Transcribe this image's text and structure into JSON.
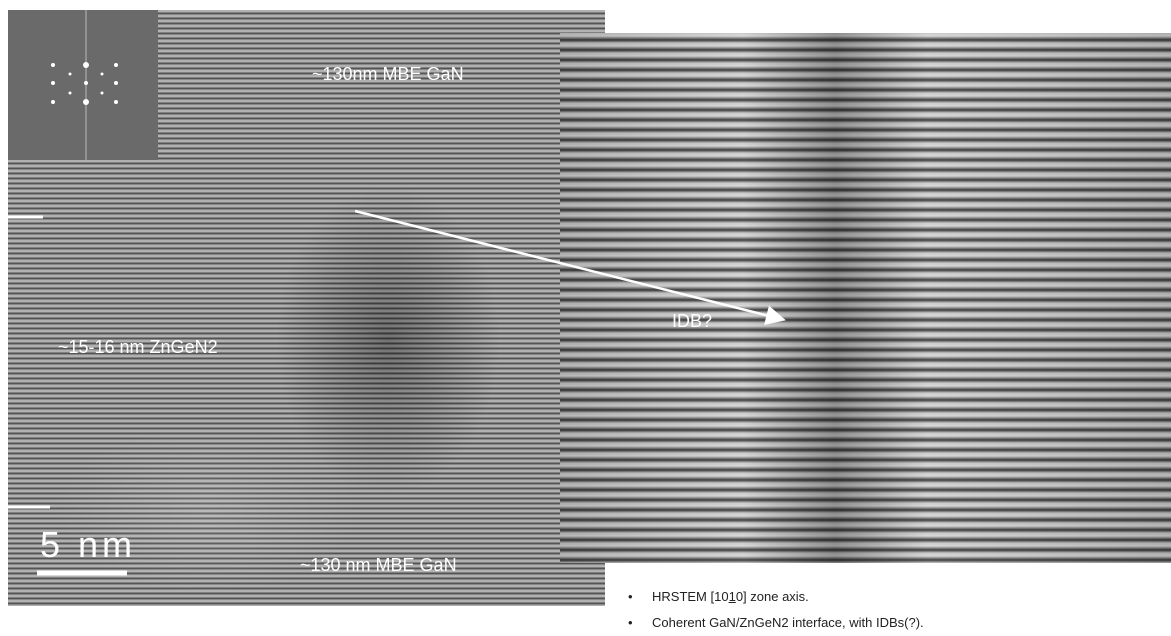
{
  "left_image": {
    "labels": {
      "top": "~130nm MBE GaN",
      "middle": "~15-16 nm ZnGeN2",
      "bottom": "~130 nm MBE GaN"
    },
    "scale_bar": "5 nm"
  },
  "right_image": {
    "annotation": "IDB?"
  },
  "bullets": [
    {
      "before": "HRSTEM [10",
      "underlined": "1",
      "after": "0] zone axis."
    },
    {
      "text": "Coherent GaN/ZnGeN2 interface, with IDBs(?)."
    }
  ]
}
